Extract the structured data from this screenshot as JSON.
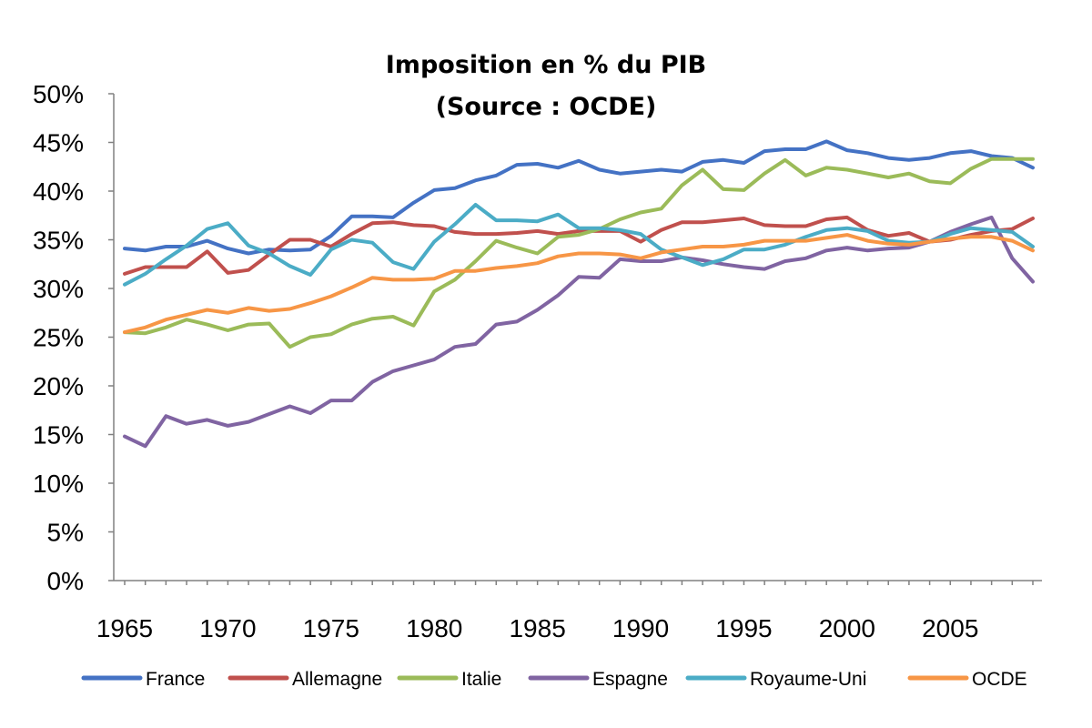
{
  "chart_data": {
    "type": "line",
    "title": "Imposition en % du PIB",
    "subtitle": "(Source : OCDE)",
    "xlabel": "",
    "ylabel": "",
    "x_range": [
      1965,
      2009
    ],
    "ylim": [
      0,
      50
    ],
    "y_ticks": [
      "0%",
      "5%",
      "10%",
      "15%",
      "20%",
      "25%",
      "30%",
      "35%",
      "40%",
      "45%",
      "50%"
    ],
    "x_ticks": [
      "1965",
      "1970",
      "1975",
      "1980",
      "1985",
      "1990",
      "1995",
      "2000",
      "2005"
    ],
    "grid": false,
    "legend_position": "bottom",
    "x": [
      1965,
      1966,
      1967,
      1968,
      1969,
      1970,
      1971,
      1972,
      1973,
      1974,
      1975,
      1976,
      1977,
      1978,
      1979,
      1980,
      1981,
      1982,
      1983,
      1984,
      1985,
      1986,
      1987,
      1988,
      1989,
      1990,
      1991,
      1992,
      1993,
      1994,
      1995,
      1996,
      1997,
      1998,
      1999,
      2000,
      2001,
      2002,
      2003,
      2004,
      2005,
      2006,
      2007,
      2008,
      2009
    ],
    "series": [
      {
        "name": "France",
        "color": "#4472C4",
        "values": [
          34.1,
          33.9,
          34.3,
          34.3,
          34.9,
          34.1,
          33.6,
          34.0,
          33.9,
          34.0,
          35.4,
          37.4,
          37.4,
          37.3,
          38.8,
          40.1,
          40.3,
          41.1,
          41.6,
          42.7,
          42.8,
          42.4,
          43.1,
          42.2,
          41.8,
          42.0,
          42.2,
          42.0,
          43.0,
          43.2,
          42.9,
          44.1,
          44.3,
          44.3,
          45.1,
          44.2,
          43.9,
          43.4,
          43.2,
          43.4,
          43.9,
          44.1,
          43.6,
          43.4,
          42.4
        ]
      },
      {
        "name": "Allemagne",
        "color": "#C0504D",
        "values": [
          31.5,
          32.2,
          32.2,
          32.2,
          33.8,
          31.6,
          31.9,
          33.5,
          35.0,
          35.0,
          34.3,
          35.6,
          36.7,
          36.8,
          36.5,
          36.4,
          35.8,
          35.6,
          35.6,
          35.7,
          35.9,
          35.6,
          35.9,
          35.9,
          35.9,
          34.8,
          36.0,
          36.8,
          36.8,
          37.0,
          37.2,
          36.5,
          36.4,
          36.4,
          37.1,
          37.3,
          36.0,
          35.4,
          35.7,
          34.8,
          35.0,
          35.5,
          35.9,
          36.1,
          37.2
        ]
      },
      {
        "name": "Italie",
        "color": "#9BBB59",
        "values": [
          25.5,
          25.4,
          26.0,
          26.8,
          26.3,
          25.7,
          26.3,
          26.4,
          24.0,
          25.0,
          25.3,
          26.3,
          26.9,
          27.1,
          26.2,
          29.7,
          30.9,
          32.8,
          34.9,
          34.2,
          33.6,
          35.3,
          35.5,
          36.1,
          37.1,
          37.8,
          38.2,
          40.6,
          42.2,
          40.2,
          40.1,
          41.8,
          43.2,
          41.6,
          42.4,
          42.2,
          41.8,
          41.4,
          41.8,
          41.0,
          40.8,
          42.3,
          43.3,
          43.3,
          43.3
        ]
      },
      {
        "name": "Espagne",
        "color": "#8064A2",
        "values": [
          14.8,
          13.8,
          16.9,
          16.1,
          16.5,
          15.9,
          16.3,
          17.1,
          17.9,
          17.2,
          18.5,
          18.5,
          20.4,
          21.5,
          22.1,
          22.7,
          24.0,
          24.3,
          26.3,
          26.6,
          27.8,
          29.3,
          31.2,
          31.1,
          33.0,
          32.8,
          32.8,
          33.2,
          32.9,
          32.5,
          32.2,
          32.0,
          32.8,
          33.1,
          33.9,
          34.2,
          33.9,
          34.1,
          34.2,
          34.8,
          35.8,
          36.6,
          37.3,
          33.1,
          30.7
        ]
      },
      {
        "name": "Royaume-Uni",
        "color": "#4BACC6",
        "values": [
          30.4,
          31.5,
          33.0,
          34.4,
          36.1,
          36.7,
          34.4,
          33.6,
          32.3,
          31.4,
          34.0,
          35.0,
          34.7,
          32.7,
          32.0,
          34.8,
          36.6,
          38.6,
          37.0,
          37.0,
          36.9,
          37.6,
          36.2,
          36.2,
          36.0,
          35.6,
          34.0,
          33.2,
          32.4,
          33.0,
          34.0,
          34.0,
          34.5,
          35.3,
          36.0,
          36.2,
          35.9,
          34.9,
          34.7,
          34.8,
          35.6,
          36.2,
          36.0,
          35.8,
          34.3
        ]
      },
      {
        "name": "OCDE",
        "color": "#F79646",
        "values": [
          25.5,
          26.0,
          26.8,
          27.3,
          27.8,
          27.5,
          28.0,
          27.7,
          27.9,
          28.5,
          29.2,
          30.1,
          31.1,
          30.9,
          30.9,
          31.0,
          31.8,
          31.8,
          32.1,
          32.3,
          32.6,
          33.3,
          33.6,
          33.6,
          33.5,
          33.1,
          33.7,
          34.0,
          34.3,
          34.3,
          34.5,
          34.9,
          34.9,
          34.9,
          35.2,
          35.5,
          34.9,
          34.6,
          34.5,
          34.8,
          35.1,
          35.3,
          35.3,
          34.9,
          33.9
        ]
      }
    ]
  }
}
